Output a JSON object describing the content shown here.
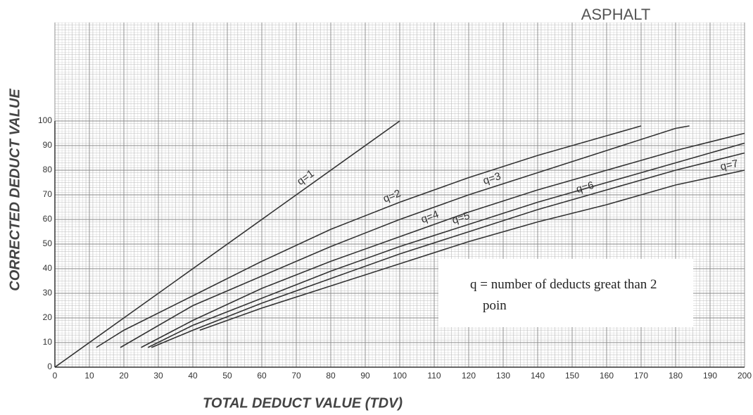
{
  "chart_data": {
    "type": "line",
    "title": "ASPHALT",
    "x_label": "TOTAL DEDUCT VALUE (TDV)",
    "y_label": "CORRECTED DEDUCT VALUE",
    "annotation": "q = number of deducts great than 2 poin",
    "xlim": [
      0,
      200
    ],
    "ylim": [
      0,
      100
    ],
    "xticks": [
      0,
      10,
      20,
      30,
      40,
      50,
      60,
      70,
      80,
      90,
      100,
      110,
      120,
      130,
      140,
      150,
      160,
      170,
      180,
      190,
      200
    ],
    "yticks": [
      0,
      10,
      20,
      30,
      40,
      50,
      60,
      70,
      80,
      90,
      100
    ],
    "grid": true,
    "series": [
      {
        "name": "q=1",
        "color": "#333333",
        "x": [
          0,
          100
        ],
        "values": [
          0,
          100
        ]
      },
      {
        "name": "q=2",
        "color": "#333333",
        "x": [
          12,
          20,
          40,
          60,
          80,
          100,
          120,
          140,
          160,
          170
        ],
        "values": [
          8,
          15,
          29,
          43,
          56,
          67,
          77,
          86,
          94,
          98
        ]
      },
      {
        "name": "q=3",
        "color": "#333333",
        "x": [
          19,
          40,
          60,
          80,
          100,
          120,
          140,
          160,
          180,
          184
        ],
        "values": [
          8,
          25,
          37,
          49,
          60,
          70,
          79,
          88,
          97,
          98
        ]
      },
      {
        "name": "q=4",
        "color": "#333333",
        "x": [
          25,
          40,
          60,
          80,
          100,
          120,
          140,
          160,
          180,
          200
        ],
        "values": [
          8,
          19,
          32,
          43,
          53,
          63,
          72,
          80,
          88,
          95
        ]
      },
      {
        "name": "q=5",
        "color": "#333333",
        "x": [
          27,
          40,
          60,
          80,
          100,
          120,
          140,
          160,
          180,
          200
        ],
        "values": [
          8,
          17,
          28,
          39,
          49,
          58,
          67,
          75,
          83,
          91
        ]
      },
      {
        "name": "q=6",
        "color": "#333333",
        "x": [
          28,
          40,
          60,
          80,
          100,
          120,
          140,
          160,
          180,
          200
        ],
        "values": [
          8,
          15,
          26,
          36,
          46,
          55,
          64,
          72,
          80,
          87
        ]
      },
      {
        "name": "q=7",
        "color": "#333333",
        "x": [
          42,
          60,
          80,
          100,
          120,
          140,
          160,
          180,
          200
        ],
        "values": [
          15,
          24,
          33,
          42,
          51,
          59,
          66,
          74,
          80
        ]
      }
    ]
  }
}
